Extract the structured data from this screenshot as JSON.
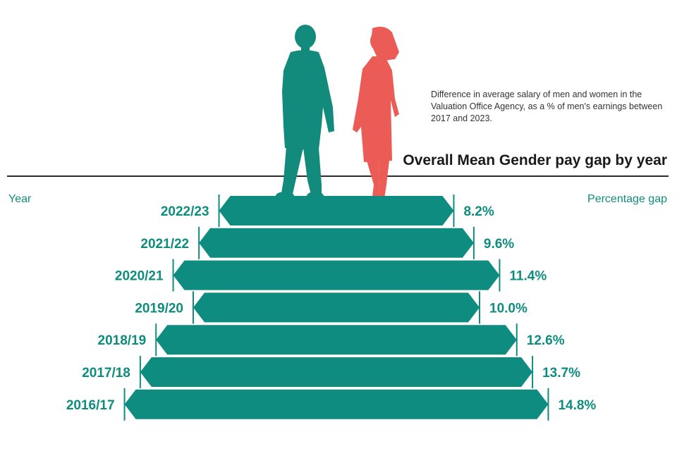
{
  "header": {
    "subtitle": "Difference in average salary of men and women in the Valuation Office Agency, as a % of men's earnings between 2017 and 2023.",
    "title": "Overall Mean Gender pay gap by year",
    "left_axis_label": "Year",
    "right_axis_label": "Percentage gap"
  },
  "colors": {
    "teal": "#0f8c80",
    "man_silhouette": "#128a7c",
    "woman_silhouette": "#ec5c56",
    "rule": "#2b2b2b",
    "text_dark": "#1a1a1a"
  },
  "chart_data": {
    "type": "bar",
    "orientation": "horizontal",
    "categories": [
      "2022/23",
      "2021/22",
      "2020/21",
      "2019/20",
      "2018/19",
      "2017/18",
      "2016/17"
    ],
    "values": [
      8.2,
      9.6,
      11.4,
      10.0,
      12.6,
      13.7,
      14.8
    ],
    "value_labels": [
      "8.2%",
      "9.6%",
      "11.4%",
      "10.0%",
      "12.6%",
      "13.7%",
      "14.8%"
    ],
    "title": "Overall Mean Gender pay gap by year",
    "xlabel": "Percentage gap",
    "ylabel": "Year",
    "grid": false,
    "legend": "none"
  }
}
